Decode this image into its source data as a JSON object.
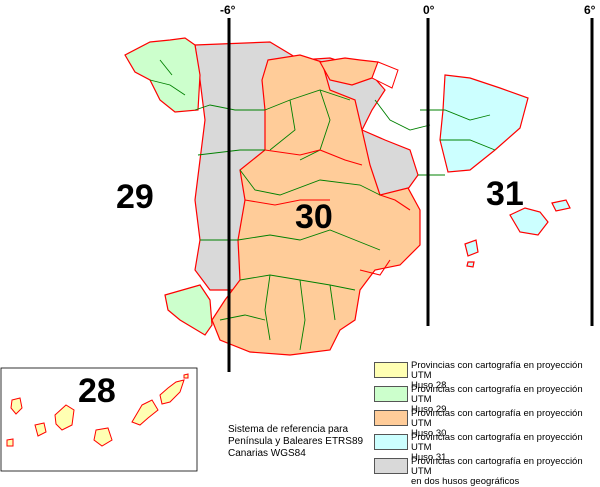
{
  "meridians": {
    "m1": "-6°",
    "m2": "0°",
    "m3": "6°"
  },
  "zones": {
    "z29": "29",
    "z30": "30",
    "z31": "31",
    "z28": "28"
  },
  "colors": {
    "huso28": "#ffffb3",
    "huso29": "#ccffcc",
    "huso30": "#ffcc99",
    "huso31": "#ccffff",
    "dos_husos": "#d9d9d9",
    "border": "#ff0000",
    "internal": "#008000"
  },
  "note": {
    "line1": "Sistema de referencia para",
    "line2": "Península y Baleares ETRS89",
    "line3": "Canarias WGS84"
  },
  "legend": [
    {
      "color": "#ffffb3",
      "line1": "Provincias con cartografía en proyección UTM",
      "line2": "Huso 28"
    },
    {
      "color": "#ccffcc",
      "line1": "Provincias con cartografía en proyección UTM",
      "line2": "Huso 29"
    },
    {
      "color": "#ffcc99",
      "line1": "Provincias con cartografía en proyección UTM",
      "line2": "Huso 30"
    },
    {
      "color": "#ccffff",
      "line1": "Provincias con cartografía en proyección UTM",
      "line2": "Huso 31"
    },
    {
      "color": "#d9d9d9",
      "line1": "Provincias con cartografía en proyección UTM",
      "line2": "en dos husos geográficos"
    }
  ]
}
